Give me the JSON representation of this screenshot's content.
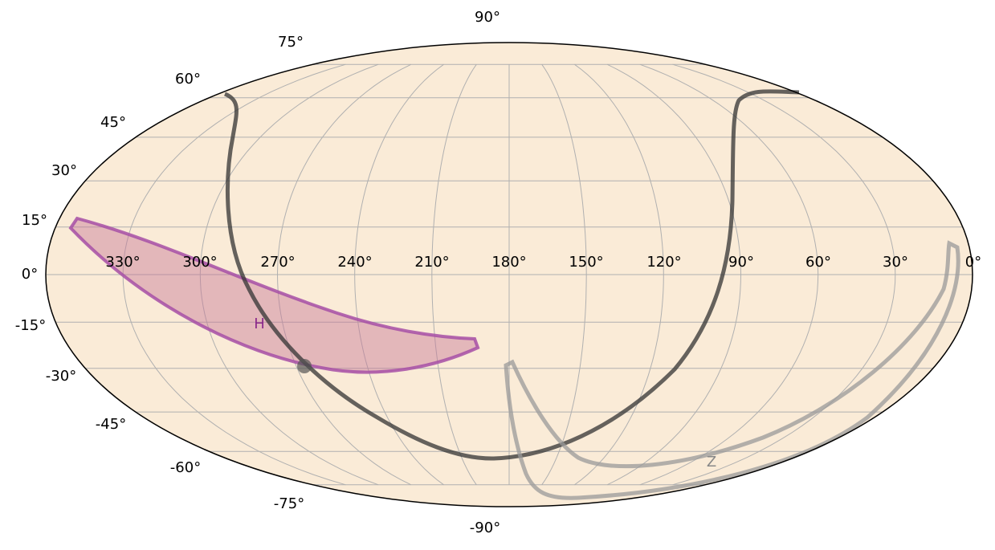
{
  "longitude_labels": [
    "330°",
    "300°",
    "270°",
    "240°",
    "210°",
    "180°",
    "150°",
    "120°",
    "90°",
    "60°",
    "30°",
    "0°"
  ],
  "latitude_labels": [
    "90°",
    "75°",
    "60°",
    "45°",
    "30°",
    "15°",
    "0°",
    "-15°",
    "-30°",
    "-45°",
    "-60°",
    "-75°",
    "-90°"
  ],
  "region_labels": [
    "H",
    "Z"
  ]
}
